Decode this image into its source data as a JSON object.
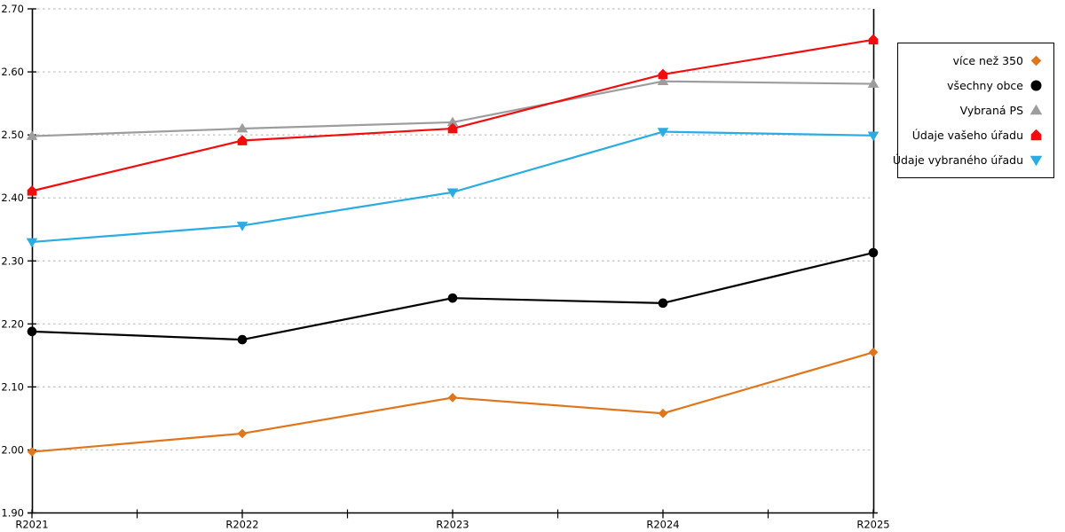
{
  "chart_data": {
    "type": "line",
    "title": "",
    "xlabel": "",
    "ylabel": "",
    "x_categories": [
      "R2021",
      "R2022",
      "R2023",
      "R2024",
      "R2025"
    ],
    "series": [
      {
        "name": "více než 350",
        "marker": "diamond",
        "color": "#E0751C",
        "values": [
          1.997,
          2.026,
          2.083,
          2.058,
          2.155
        ]
      },
      {
        "name": "všechny obce",
        "marker": "circle",
        "color": "#000000",
        "values": [
          2.188,
          2.175,
          2.241,
          2.233,
          2.313
        ]
      },
      {
        "name": "Vybraná PS",
        "marker": "triangle-up",
        "color": "#9D9D9D",
        "values": [
          2.498,
          2.51,
          2.52,
          2.585,
          2.581
        ]
      },
      {
        "name": "Údaje vašeho úřadu",
        "marker": "pentagon-up",
        "color": "#F20C0C",
        "values": [
          2.411,
          2.491,
          2.51,
          2.596,
          2.651
        ]
      },
      {
        "name": "Údaje vybraného úřadu",
        "marker": "triangle-down",
        "color": "#2AACE3",
        "values": [
          2.33,
          2.356,
          2.409,
          2.505,
          2.499
        ]
      }
    ],
    "ylim": [
      1.9,
      2.7
    ],
    "y_tick_step": 0.1,
    "y_tick_labels": [
      "1.90",
      "2.00",
      "2.10",
      "2.20",
      "2.30",
      "2.40",
      "2.50",
      "2.60",
      "2.70"
    ],
    "grid": "horizontal-dotted",
    "grid_color": "#C0C0C0",
    "axis_color": "#000000",
    "legend_position": "right",
    "minor_x_ticks": "midpoints"
  },
  "legend": {
    "items": [
      {
        "label": "více než 350",
        "marker": "diamond"
      },
      {
        "label": "všechny obce",
        "marker": "circle"
      },
      {
        "label": "Vybraná PS",
        "marker": "triangle-up"
      },
      {
        "label": "Údaje vašeho úřadu",
        "marker": "pentagon-up"
      },
      {
        "label": "Údaje vybraného úřadu",
        "marker": "triangle-down"
      }
    ]
  }
}
